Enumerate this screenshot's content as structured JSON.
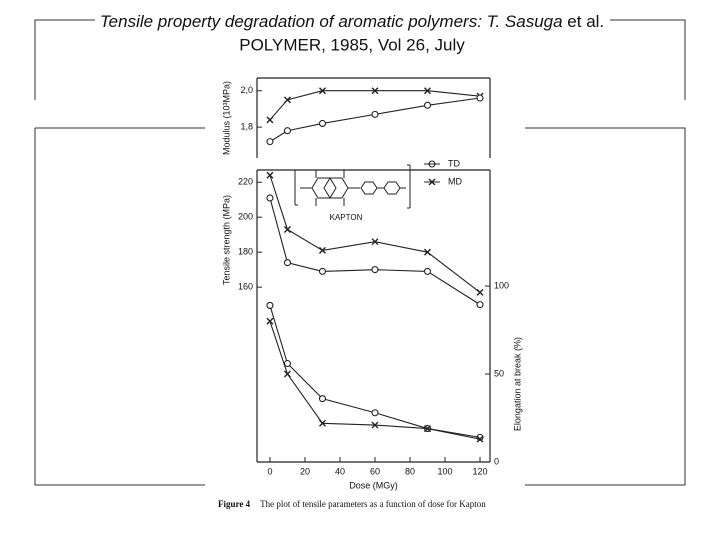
{
  "header": {
    "title_italic": "Tensile property degradation of aromatic polymers: T. Sasuga",
    "title_tail": "et al.",
    "subtitle": "POLYMER, 1985, Vol 26, July"
  },
  "structure_label": "KAPTON",
  "caption": {
    "figure_no": "Figure 4",
    "text": "The plot of tensile parameters as a function of dose for Kapton"
  },
  "chart_data": [
    {
      "type": "line",
      "y_label": "Modulus (10³MPa)",
      "x": [
        0,
        10,
        30,
        60,
        90,
        120
      ],
      "xlim": [
        -7.4,
        125.7
      ],
      "ylim": [
        1.63,
        2.07
      ],
      "yticks": [
        {
          "value": 1.8,
          "label": "1,8"
        },
        {
          "value": 2.0,
          "label": "2,0"
        }
      ],
      "series": [
        {
          "marker": "cross",
          "color": "#222222",
          "values": [
            1.84,
            1.95,
            2.0,
            2.0,
            2.0,
            1.97
          ]
        },
        {
          "marker": "circle",
          "color": "#222222",
          "values": [
            1.72,
            1.78,
            1.82,
            1.87,
            1.92,
            1.96
          ]
        }
      ]
    },
    {
      "type": "line",
      "y_label": "Tensile strength (MPa)",
      "y2_label": "Elongation at break (%)",
      "x_label": "Dose (MGy)",
      "x": [
        0,
        10,
        30,
        60,
        90,
        120
      ],
      "xlim": [
        -7.4,
        125.7
      ],
      "xticks": [
        0,
        20,
        40,
        60,
        80,
        100,
        120
      ],
      "ylim": [
        60,
        227
      ],
      "yticks": [
        160,
        180,
        200,
        220
      ],
      "y2lim": [
        0,
        166
      ],
      "y2ticks": [
        0,
        50,
        100
      ],
      "series": [
        {
          "name": "TD",
          "marker": "circle",
          "color": "#222222",
          "values": [
            211,
            174,
            169,
            170,
            169,
            150
          ]
        },
        {
          "name": "MD",
          "marker": "cross",
          "color": "#222222",
          "values": [
            224,
            193,
            181,
            186,
            180,
            157
          ]
        },
        {
          "marker": "circle",
          "color": "#222222",
          "axis": "y2",
          "values": [
            89,
            56,
            36,
            28,
            19,
            14
          ]
        },
        {
          "marker": "cross",
          "color": "#222222",
          "axis": "y2",
          "values": [
            80,
            50,
            22,
            21,
            19,
            13
          ]
        }
      ]
    }
  ]
}
